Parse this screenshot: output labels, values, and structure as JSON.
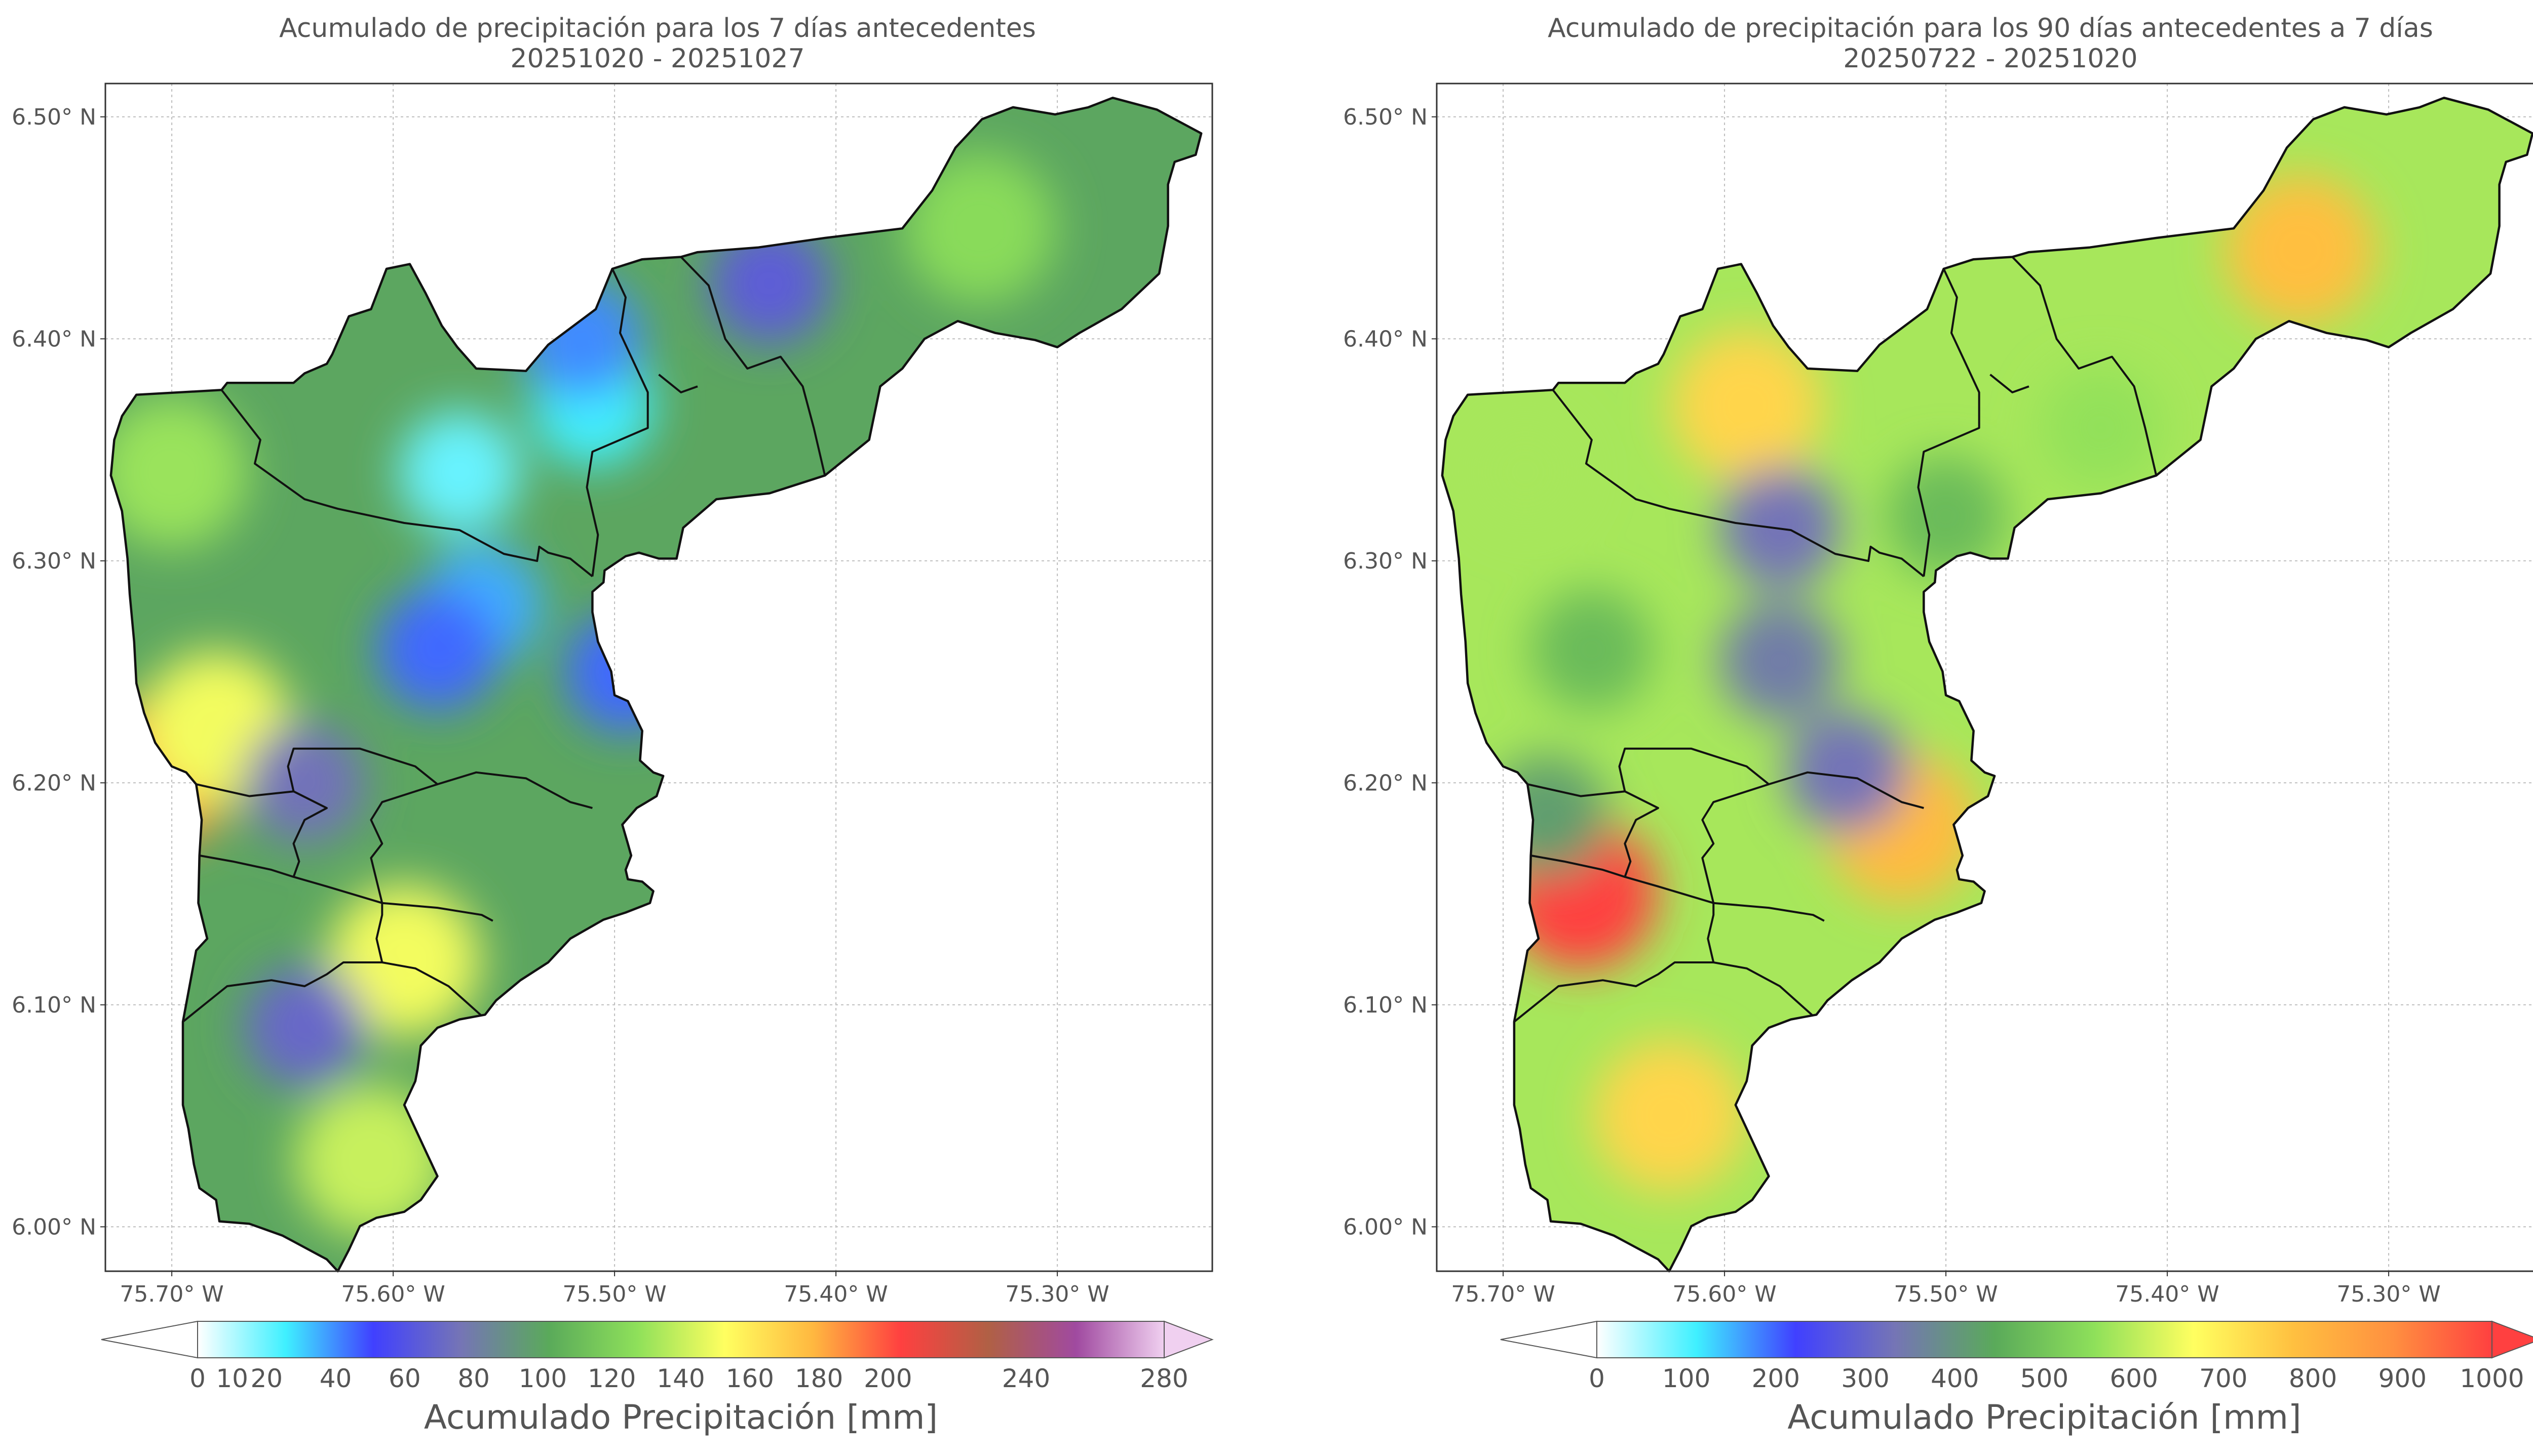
{
  "chart_data": [
    {
      "type": "heatmap",
      "title": "Acumulado de precipitación para los 7 días antecedentes",
      "subtitle": "20251020 - 20251027",
      "x_ticks": [
        "75.70° W",
        "75.60° W",
        "75.50° W",
        "75.40° W",
        "75.30° W"
      ],
      "x_tick_values": [
        -75.7,
        -75.6,
        -75.5,
        -75.4,
        -75.3
      ],
      "y_ticks": [
        "6.50° N",
        "6.40° N",
        "6.30° N",
        "6.20° N",
        "6.10° N",
        "6.00° N"
      ],
      "y_tick_values": [
        6.5,
        6.4,
        6.3,
        6.2,
        6.1,
        6.0
      ],
      "xlim": [
        -75.73,
        -75.23
      ],
      "ylim": [
        5.98,
        6.515
      ],
      "grid": true,
      "colorbar": {
        "label": "Acumulado Precipitación [mm]",
        "ticks": [
          0,
          10,
          20,
          40,
          60,
          80,
          100,
          120,
          140,
          160,
          180,
          200,
          240,
          280
        ],
        "colors": [
          "#ffffff",
          "#3ff0ff",
          "#4040ff",
          "#7575b5",
          "#5aaa5a",
          "#8ee05a",
          "#ffff60",
          "#ffb840",
          "#ff4040",
          "#b06045",
          "#a04aa0",
          "#f0d0f0"
        ],
        "extend": "both"
      },
      "fields": [
        {
          "lon": -75.705,
          "lat": 6.205,
          "value": 185
        },
        {
          "lon": -75.68,
          "lat": 6.225,
          "value": 150
        },
        {
          "lon": -75.7,
          "lat": 6.34,
          "value": 130
        },
        {
          "lon": -75.595,
          "lat": 6.12,
          "value": 150
        },
        {
          "lon": -75.61,
          "lat": 6.03,
          "value": 140
        },
        {
          "lon": -75.57,
          "lat": 6.34,
          "value": 20
        },
        {
          "lon": -75.51,
          "lat": 6.37,
          "value": 25
        },
        {
          "lon": -75.56,
          "lat": 6.28,
          "value": 35
        },
        {
          "lon": -75.495,
          "lat": 6.25,
          "value": 45
        },
        {
          "lon": -75.58,
          "lat": 6.26,
          "value": 45
        },
        {
          "lon": -75.515,
          "lat": 6.4,
          "value": 40
        },
        {
          "lon": -75.43,
          "lat": 6.425,
          "value": 65
        },
        {
          "lon": -75.335,
          "lat": 6.45,
          "value": 125
        },
        {
          "lon": -75.64,
          "lat": 6.09,
          "value": 70
        },
        {
          "lon": -75.64,
          "lat": 6.2,
          "value": 75
        }
      ],
      "background_value": 100
    },
    {
      "type": "heatmap",
      "title": "Acumulado de precipitación para los 90 días antecedentes a 7 días",
      "subtitle": "20250722 - 20251020",
      "x_ticks": [
        "75.70° W",
        "75.60° W",
        "75.50° W",
        "75.40° W",
        "75.30° W"
      ],
      "x_tick_values": [
        -75.7,
        -75.6,
        -75.5,
        -75.4,
        -75.3
      ],
      "y_ticks": [
        "6.50° N",
        "6.40° N",
        "6.30° N",
        "6.20° N",
        "6.10° N",
        "6.00° N"
      ],
      "y_tick_values": [
        6.5,
        6.4,
        6.3,
        6.2,
        6.1,
        6.0
      ],
      "xlim": [
        -75.73,
        -75.23
      ],
      "ylim": [
        5.98,
        6.515
      ],
      "grid": true,
      "colorbar": {
        "label": "Acumulado Precipitación [mm]",
        "ticks": [
          0,
          100,
          200,
          300,
          400,
          500,
          600,
          700,
          800,
          900,
          1000
        ],
        "colors": [
          "#ffffff",
          "#3ff0ff",
          "#4040ff",
          "#7575b5",
          "#5aaa5a",
          "#8ee05a",
          "#ffff60",
          "#ffc040",
          "#ff9040",
          "#ff4040"
        ],
        "extend": "both"
      },
      "fields": [
        {
          "lon": -75.665,
          "lat": 6.15,
          "value": 1000
        },
        {
          "lon": -75.34,
          "lat": 6.44,
          "value": 780
        },
        {
          "lon": -75.52,
          "lat": 6.18,
          "value": 790
        },
        {
          "lon": -75.59,
          "lat": 6.37,
          "value": 740
        },
        {
          "lon": -75.625,
          "lat": 6.05,
          "value": 740
        },
        {
          "lon": -75.575,
          "lat": 6.315,
          "value": 330
        },
        {
          "lon": -75.575,
          "lat": 6.255,
          "value": 350
        },
        {
          "lon": -75.545,
          "lat": 6.205,
          "value": 330
        },
        {
          "lon": -75.68,
          "lat": 6.185,
          "value": 420
        },
        {
          "lon": -75.66,
          "lat": 6.26,
          "value": 480
        },
        {
          "lon": -75.5,
          "lat": 6.32,
          "value": 480
        },
        {
          "lon": -75.43,
          "lat": 6.36,
          "value": 560
        },
        {
          "lon": -75.69,
          "lat": 6.34,
          "value": 580
        }
      ],
      "background_value": 580
    }
  ]
}
